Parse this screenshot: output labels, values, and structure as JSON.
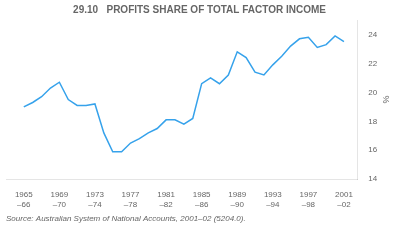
{
  "chart_data": {
    "type": "line",
    "title": "29.10   PROFITS SHARE OF TOTAL FACTOR INCOME",
    "y_label": "%",
    "source": "Source: Australian System of National Accounts, 2001–02 (5204.0).",
    "x": [
      1965,
      1966,
      1967,
      1968,
      1969,
      1970,
      1971,
      1972,
      1973,
      1974,
      1975,
      1976,
      1977,
      1978,
      1979,
      1980,
      1981,
      1982,
      1983,
      1984,
      1985,
      1986,
      1987,
      1988,
      1989,
      1990,
      1991,
      1992,
      1993,
      1994,
      1995,
      1996,
      1997,
      1998,
      1999,
      2000,
      2001
    ],
    "values": [
      19.0,
      19.3,
      19.7,
      20.3,
      20.7,
      19.5,
      19.1,
      19.1,
      19.2,
      17.2,
      15.9,
      15.9,
      16.5,
      16.8,
      17.2,
      17.5,
      18.1,
      18.1,
      17.8,
      18.2,
      20.6,
      21.0,
      20.6,
      21.2,
      22.8,
      22.4,
      21.4,
      21.2,
      21.9,
      22.5,
      23.2,
      23.7,
      23.8,
      23.1,
      23.3,
      23.9,
      23.5
    ],
    "xlim": [
      1963.0,
      2002.5
    ],
    "xticks": [
      {
        "value": 1965,
        "label": "1965\n–66"
      },
      {
        "value": 1969,
        "label": "1969\n–70"
      },
      {
        "value": 1973,
        "label": "1973\n–74"
      },
      {
        "value": 1977,
        "label": "1977\n–78"
      },
      {
        "value": 1981,
        "label": "1981\n–82"
      },
      {
        "value": 1985,
        "label": "1985\n–86"
      },
      {
        "value": 1989,
        "label": "1989\n–90"
      },
      {
        "value": 1993,
        "label": "1993\n–94"
      },
      {
        "value": 1997,
        "label": "1997\n–98"
      },
      {
        "value": 2001,
        "label": "2001\n–02"
      }
    ],
    "ylim": [
      14,
      25
    ],
    "yticks": [
      14,
      16,
      18,
      20,
      22,
      24
    ],
    "grid": false
  }
}
